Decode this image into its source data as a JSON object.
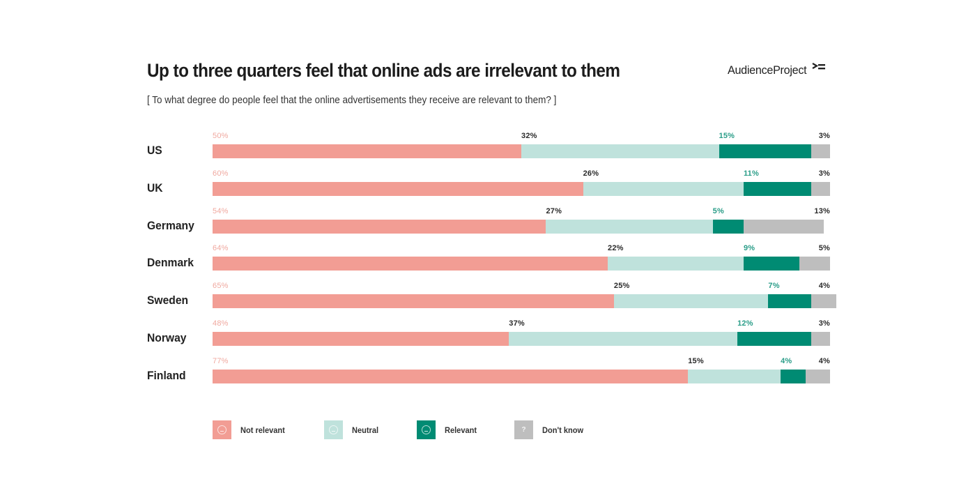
{
  "header": {
    "title": "Up to three quarters feel that online ads are irrelevant to them",
    "subtitle": "[ To what degree do people feel that the online advertisements they receive are relevant to them? ]",
    "brand": "AudienceProject",
    "brand_icon": "audienceproject-logo-icon"
  },
  "colors": {
    "not_relevant": "#f29d94",
    "neutral": "#bfe2dc",
    "relevant": "#008b73",
    "dont_know": "#bebebe",
    "not_relevant_label": "#f0a89f",
    "relevant_label": "#2a9d88",
    "default_label": "#2a2a2a"
  },
  "chart_data": {
    "type": "bar",
    "orientation": "horizontal",
    "stacked": true,
    "title": "Up to three quarters feel that online ads are irrelevant to them",
    "subtitle": "[ To what degree do people feel that the online advertisements they receive are relevant to them? ]",
    "xlabel": "",
    "ylabel": "",
    "xlim": [
      0,
      100
    ],
    "unit": "%",
    "grid": false,
    "legend_position": "bottom-left",
    "categories": [
      "US",
      "UK",
      "Germany",
      "Denmark",
      "Sweden",
      "Norway",
      "Finland"
    ],
    "series": [
      {
        "name": "Not relevant",
        "key": "not_relevant",
        "icon": "sad-face-icon",
        "values": [
          50,
          60,
          54,
          64,
          65,
          48,
          77
        ]
      },
      {
        "name": "Neutral",
        "key": "neutral",
        "icon": "neutral-face-icon",
        "values": [
          32,
          26,
          27,
          22,
          25,
          37,
          15
        ]
      },
      {
        "name": "Relevant",
        "key": "relevant",
        "icon": "happy-face-icon",
        "values": [
          15,
          11,
          5,
          9,
          7,
          12,
          4
        ]
      },
      {
        "name": "Don't know",
        "key": "dont_know",
        "icon": "question-mark-icon",
        "values": [
          3,
          3,
          13,
          5,
          4,
          3,
          4
        ]
      }
    ]
  },
  "legend": {
    "items": [
      {
        "label": "Not relevant",
        "key": "not_relevant",
        "icon": "sad-face-icon",
        "glyph": "face"
      },
      {
        "label": "Neutral",
        "key": "neutral",
        "icon": "neutral-face-icon",
        "glyph": "face"
      },
      {
        "label": "Relevant",
        "key": "relevant",
        "icon": "happy-face-icon",
        "glyph": "face"
      },
      {
        "label": "Don't know",
        "key": "dont_know",
        "icon": "question-mark-icon",
        "glyph": "?"
      }
    ]
  }
}
